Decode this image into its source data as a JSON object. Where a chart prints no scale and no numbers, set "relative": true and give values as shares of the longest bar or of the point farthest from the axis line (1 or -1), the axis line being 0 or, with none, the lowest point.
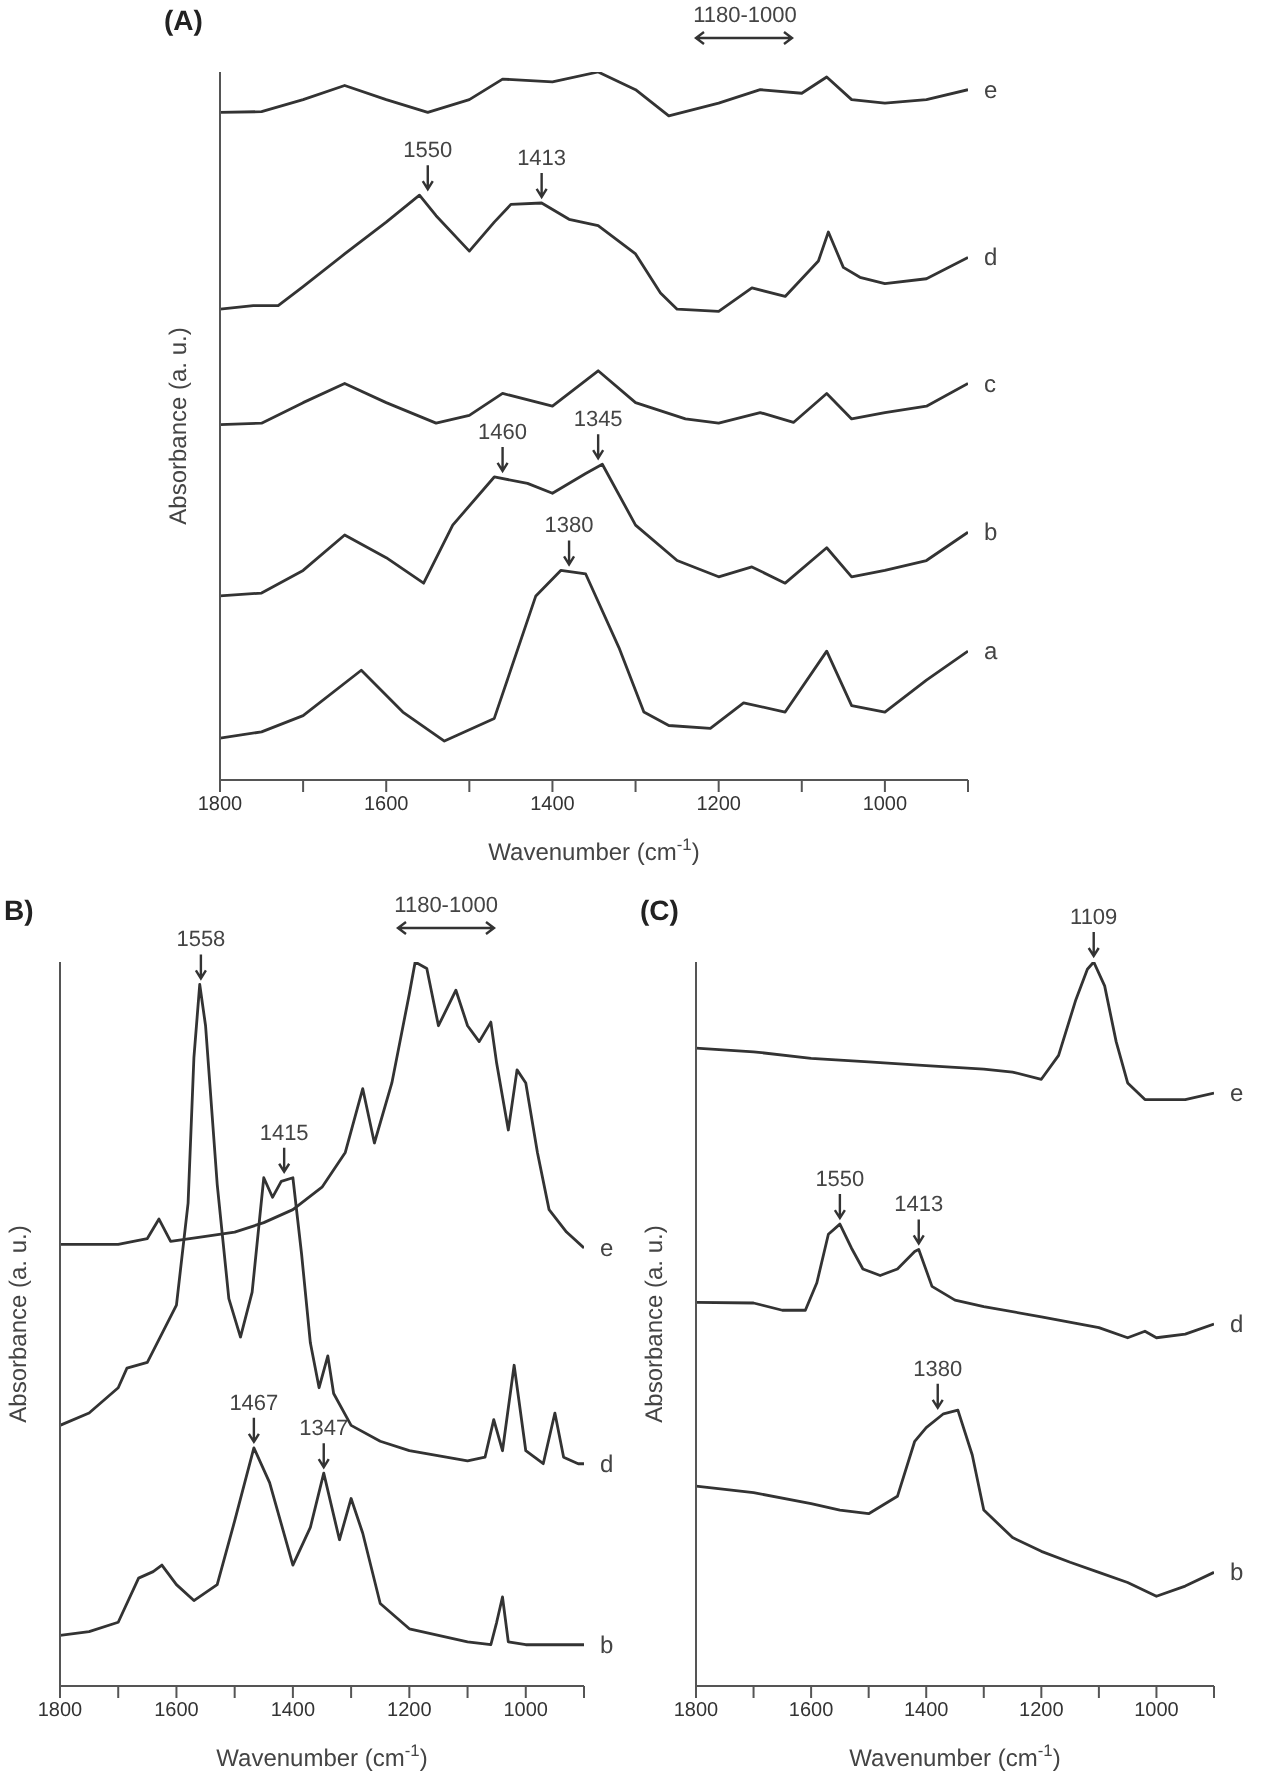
{
  "chart_data": [
    {
      "type": "line",
      "title": "(A)",
      "xlabel": "Wavenumber (cm$^{-1}$)",
      "ylabel": "Absorbance (a. u.)",
      "relative": true,
      "xlim": [
        1800,
        900
      ],
      "xticks": [
        1800,
        {
          "value": 1700,
          "label": null
        },
        1600,
        {
          "value": 1500,
          "label": null
        },
        1400,
        {
          "value": 1300,
          "label": null
        },
        1200,
        {
          "value": 1100,
          "label": null
        },
        1000,
        {
          "value": 900,
          "label": null
        }
      ],
      "series": [
        {
          "name": "e",
          "color": "#333333",
          "x": [
            1800,
            1750,
            1700,
            1650,
            1600,
            1550,
            1500,
            1460,
            1400,
            1345,
            1300,
            1260,
            1200,
            1150,
            1100,
            1070,
            1040,
            1000,
            950,
            900
          ],
          "values": [
            0.943,
            0.944,
            0.961,
            0.981,
            0.961,
            0.943,
            0.961,
            0.99,
            0.986,
            1.0,
            0.975,
            0.938,
            0.956,
            0.975,
            0.97,
            0.993,
            0.961,
            0.956,
            0.961,
            0.975
          ]
        },
        {
          "name": "d",
          "color": "#333333",
          "x": [
            1800,
            1760,
            1730,
            1700,
            1650,
            1600,
            1560,
            1540,
            1500,
            1470,
            1450,
            1413,
            1380,
            1345,
            1300,
            1270,
            1250,
            1200,
            1160,
            1120,
            1080,
            1068,
            1050,
            1030,
            1000,
            950,
            900
          ],
          "values": [
            0.665,
            0.67,
            0.67,
            0.697,
            0.743,
            0.788,
            0.826,
            0.797,
            0.747,
            0.788,
            0.813,
            0.815,
            0.792,
            0.783,
            0.743,
            0.688,
            0.665,
            0.662,
            0.695,
            0.683,
            0.733,
            0.774,
            0.724,
            0.71,
            0.701,
            0.708,
            0.738
          ]
        },
        {
          "name": "c",
          "color": "#333333",
          "x": [
            1800,
            1750,
            1700,
            1650,
            1600,
            1540,
            1500,
            1460,
            1400,
            1345,
            1300,
            1240,
            1200,
            1150,
            1110,
            1070,
            1040,
            1000,
            950,
            900
          ],
          "values": [
            0.502,
            0.504,
            0.533,
            0.56,
            0.533,
            0.504,
            0.515,
            0.546,
            0.528,
            0.578,
            0.533,
            0.51,
            0.504,
            0.519,
            0.505,
            0.546,
            0.51,
            0.519,
            0.528,
            0.56
          ]
        },
        {
          "name": "b",
          "color": "#333333",
          "x": [
            1800,
            1750,
            1700,
            1650,
            1600,
            1555,
            1520,
            1470,
            1430,
            1400,
            1360,
            1340,
            1300,
            1250,
            1200,
            1160,
            1120,
            1070,
            1040,
            1000,
            950,
            900
          ],
          "values": [
            0.26,
            0.264,
            0.296,
            0.346,
            0.314,
            0.278,
            0.36,
            0.428,
            0.419,
            0.405,
            0.433,
            0.446,
            0.36,
            0.31,
            0.287,
            0.301,
            0.278,
            0.328,
            0.287,
            0.296,
            0.31,
            0.35
          ]
        },
        {
          "name": "a",
          "color": "#333333",
          "x": [
            1800,
            1750,
            1700,
            1630,
            1580,
            1530,
            1470,
            1420,
            1390,
            1360,
            1320,
            1290,
            1260,
            1210,
            1170,
            1120,
            1070,
            1040,
            1000,
            950,
            900
          ],
          "values": [
            0.059,
            0.068,
            0.091,
            0.155,
            0.096,
            0.055,
            0.087,
            0.26,
            0.296,
            0.291,
            0.187,
            0.096,
            0.077,
            0.073,
            0.109,
            0.096,
            0.182,
            0.105,
            0.096,
            0.141,
            0.182
          ]
        }
      ],
      "annotations": [
        {
          "text": "1550",
          "x": 1550,
          "y": 0.826
        },
        {
          "text": "1413",
          "x": 1413,
          "y": 0.815
        },
        {
          "text": "1460",
          "x": 1460,
          "y": 0.428
        },
        {
          "text": "1345",
          "x": 1345,
          "y": 0.446
        },
        {
          "text": "1380",
          "x": 1380,
          "y": 0.296
        },
        "1180-1000"
      ]
    },
    {
      "type": "line",
      "title": "B)",
      "xlabel": "Wavenumber (cm$^{-1}$)",
      "ylabel": "Absorbance (a. u.)",
      "relative": true,
      "xlim": [
        1800,
        900
      ],
      "xticks": [
        1800,
        {
          "value": 1700,
          "label": null
        },
        1600,
        {
          "value": 1500,
          "label": null
        },
        1400,
        {
          "value": 1300,
          "label": null
        },
        1200,
        {
          "value": 1100,
          "label": null
        },
        1000,
        {
          "value": 900,
          "label": null
        }
      ],
      "series": [
        {
          "name": "e",
          "color": "#333333",
          "x": [
            1800,
            1700,
            1650,
            1630,
            1610,
            1550,
            1500,
            1450,
            1400,
            1350,
            1310,
            1280,
            1260,
            1230,
            1200,
            1190,
            1170,
            1150,
            1120,
            1100,
            1080,
            1060,
            1050,
            1030,
            1015,
            1000,
            980,
            960,
            930,
            900
          ],
          "values": [
            0.61,
            0.61,
            0.618,
            0.645,
            0.614,
            0.621,
            0.627,
            0.64,
            0.658,
            0.689,
            0.737,
            0.825,
            0.75,
            0.833,
            0.956,
            1.0,
            0.991,
            0.912,
            0.961,
            0.912,
            0.89,
            0.917,
            0.86,
            0.768,
            0.851,
            0.833,
            0.737,
            0.658,
            0.627,
            0.605
          ]
        },
        {
          "name": "d",
          "color": "#333333",
          "x": [
            1800,
            1750,
            1700,
            1685,
            1650,
            1600,
            1580,
            1570,
            1560,
            1550,
            1530,
            1510,
            1490,
            1470,
            1450,
            1435,
            1420,
            1400,
            1385,
            1370,
            1355,
            1340,
            1330,
            1300,
            1250,
            1200,
            1100,
            1070,
            1055,
            1040,
            1020,
            1000,
            970,
            950,
            935,
            910,
            900
          ],
          "values": [
            0.36,
            0.377,
            0.412,
            0.439,
            0.447,
            0.526,
            0.667,
            0.868,
            0.969,
            0.912,
            0.693,
            0.535,
            0.482,
            0.544,
            0.702,
            0.675,
            0.697,
            0.702,
            0.596,
            0.474,
            0.412,
            0.456,
            0.404,
            0.36,
            0.338,
            0.325,
            0.311,
            0.316,
            0.368,
            0.325,
            0.443,
            0.325,
            0.307,
            0.377,
            0.316,
            0.307,
            0.307
          ]
        },
        {
          "name": "b",
          "color": "#333333",
          "x": [
            1800,
            1750,
            1700,
            1665,
            1640,
            1625,
            1600,
            1570,
            1530,
            1500,
            1467,
            1440,
            1400,
            1370,
            1347,
            1320,
            1300,
            1280,
            1250,
            1200,
            1100,
            1060,
            1050,
            1040,
            1030,
            1000,
            900
          ],
          "values": [
            0.07,
            0.075,
            0.088,
            0.149,
            0.158,
            0.167,
            0.14,
            0.118,
            0.14,
            0.228,
            0.329,
            0.281,
            0.167,
            0.219,
            0.294,
            0.202,
            0.259,
            0.211,
            0.114,
            0.079,
            0.061,
            0.057,
            0.088,
            0.123,
            0.061,
            0.057,
            0.057
          ]
        }
      ],
      "annotations": [
        {
          "text": "1558",
          "x": 1558,
          "y": 0.969
        },
        {
          "text": "1415",
          "x": 1415,
          "y": 0.702
        },
        {
          "text": "1467",
          "x": 1467,
          "y": 0.329
        },
        {
          "text": "1347",
          "x": 1347,
          "y": 0.294
        },
        "1180-1000"
      ]
    },
    {
      "type": "line",
      "title": "(C)",
      "xlabel": "Wavenumber (cm$^{-1}$)",
      "ylabel": "Absorbance (a. u.)",
      "relative": true,
      "xlim": [
        1800,
        900
      ],
      "xticks": [
        1800,
        {
          "value": 1700,
          "label": null
        },
        1600,
        {
          "value": 1500,
          "label": null
        },
        1400,
        {
          "value": 1300,
          "label": null
        },
        1200,
        {
          "value": 1100,
          "label": null
        },
        1000,
        {
          "value": 900,
          "label": null
        }
      ],
      "series": [
        {
          "name": "e",
          "color": "#333333",
          "x": [
            1800,
            1700,
            1600,
            1500,
            1400,
            1300,
            1250,
            1200,
            1170,
            1140,
            1120,
            1109,
            1090,
            1070,
            1050,
            1020,
            1000,
            950,
            900
          ],
          "values": [
            0.881,
            0.876,
            0.867,
            0.862,
            0.857,
            0.852,
            0.848,
            0.838,
            0.871,
            0.948,
            0.99,
            1.0,
            0.967,
            0.89,
            0.833,
            0.81,
            0.81,
            0.81,
            0.819
          ]
        },
        {
          "name": "d",
          "color": "#333333",
          "x": [
            1800,
            1700,
            1650,
            1610,
            1590,
            1570,
            1550,
            1530,
            1510,
            1480,
            1450,
            1420,
            1413,
            1390,
            1350,
            1300,
            1200,
            1100,
            1050,
            1020,
            1000,
            950,
            900
          ],
          "values": [
            0.53,
            0.529,
            0.519,
            0.519,
            0.557,
            0.624,
            0.638,
            0.605,
            0.576,
            0.567,
            0.576,
            0.6,
            0.603,
            0.552,
            0.533,
            0.524,
            0.51,
            0.495,
            0.481,
            0.49,
            0.481,
            0.486,
            0.5
          ]
        },
        {
          "name": "b",
          "color": "#333333",
          "x": [
            1800,
            1700,
            1600,
            1550,
            1500,
            1450,
            1420,
            1400,
            1370,
            1345,
            1320,
            1300,
            1250,
            1200,
            1150,
            1100,
            1050,
            1000,
            950,
            900
          ],
          "values": [
            0.276,
            0.267,
            0.252,
            0.243,
            0.238,
            0.262,
            0.338,
            0.357,
            0.376,
            0.381,
            0.319,
            0.243,
            0.205,
            0.186,
            0.171,
            0.157,
            0.143,
            0.124,
            0.138,
            0.157
          ]
        }
      ],
      "annotations": [
        {
          "text": "1109",
          "x": 1109,
          "y": 1.0
        },
        {
          "text": "1550",
          "x": 1550,
          "y": 0.638
        },
        {
          "text": "1413",
          "x": 1413,
          "y": 0.603
        },
        {
          "text": "1380",
          "x": 1380,
          "y": 0.376
        }
      ]
    }
  ]
}
